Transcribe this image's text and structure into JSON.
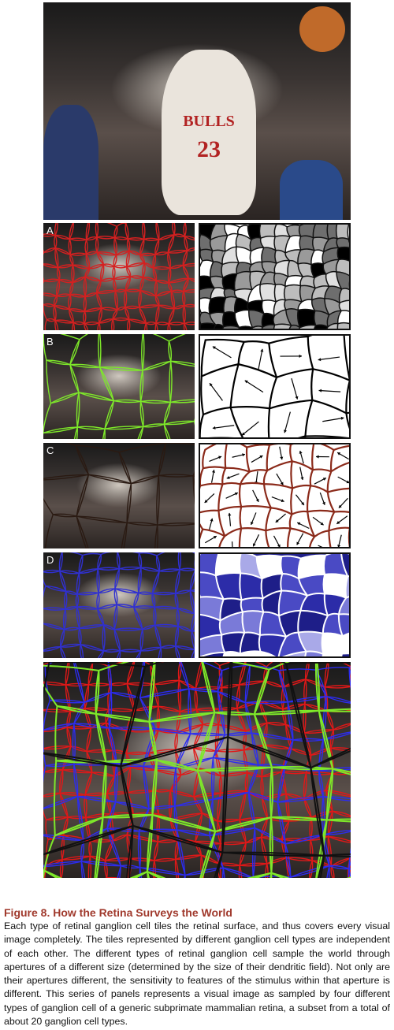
{
  "figure": {
    "panels": [
      {
        "letter": "A",
        "outline_color": "#d42020",
        "mosaic": "grayscale-patches"
      },
      {
        "letter": "B",
        "outline_color": "#7ee82a",
        "mosaic": "direction-arrows-large"
      },
      {
        "letter": "C",
        "outline_color": "#2a1a12",
        "mosaic": "direction-arrows-small"
      },
      {
        "letter": "D",
        "outline_color": "#3030d0",
        "mosaic": "blue-tinted-tiles"
      }
    ],
    "jersey_text": "BULLS",
    "jersey_number": "23"
  },
  "caption": {
    "title": "Figure 8. How the Retina Surveys the World",
    "body": "Each type of retinal ganglion cell tiles the retinal surface, and thus covers every visual image completely. The tiles represented by different ganglion cell types are independent of each other. The different types of retinal ganglion cell sample the world through apertures of a different size (determined by the size of their dendritic field). Not only are their apertures different, the sensitivity to features of the stimulus within that aperture is different. This series of panels represents a visual image as sampled by four different types of ganglion cell of a generic subprimate mammalian retina, a subset from a total of about 20 ganglion cell types."
  }
}
